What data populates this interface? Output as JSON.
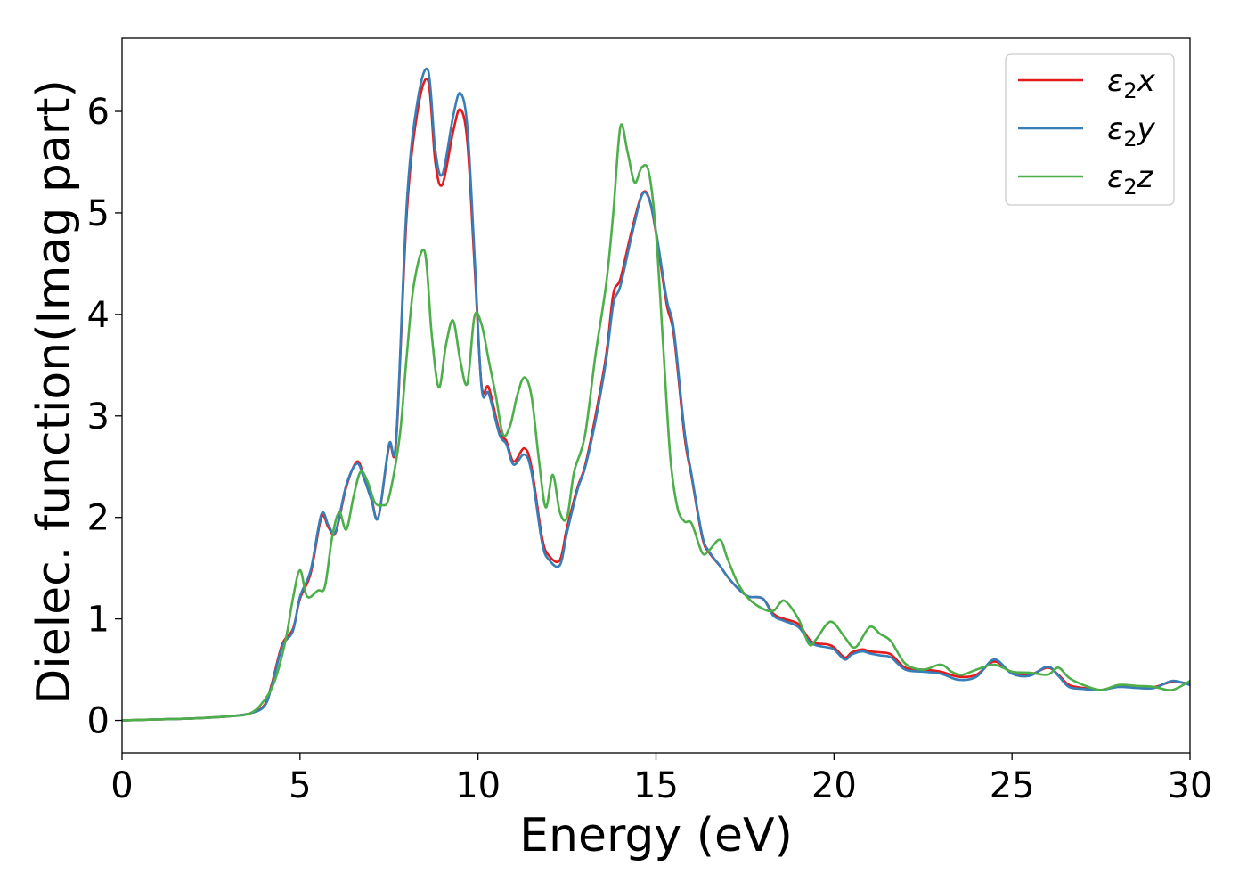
{
  "chart_data": {
    "type": "line",
    "xlabel": "Energy (eV)",
    "ylabel": "Dielec. function(Imag part)",
    "xlim": [
      0,
      30
    ],
    "ylim": [
      -0.32,
      6.72
    ],
    "xticks": [
      0,
      5,
      10,
      15,
      20,
      25,
      30
    ],
    "yticks": [
      0,
      1,
      2,
      3,
      4,
      5,
      6
    ],
    "grid": false,
    "legend_position": "top-right",
    "series": [
      {
        "name": "ε₂x",
        "legend_base": "ε",
        "legend_sub": "2",
        "legend_suffix": "x",
        "color": "#e41a1c",
        "x": [
          0,
          1,
          2,
          3,
          3.6,
          4,
          4.2,
          4.5,
          4.8,
          5.0,
          5.3,
          5.6,
          5.8,
          6.0,
          6.3,
          6.6,
          6.8,
          7.0,
          7.2,
          7.5,
          7.7,
          8.0,
          8.3,
          8.6,
          8.8,
          9.0,
          9.3,
          9.5,
          9.7,
          9.9,
          10.1,
          10.3,
          10.6,
          10.8,
          11.0,
          11.3,
          11.5,
          11.8,
          12.0,
          12.3,
          12.5,
          12.8,
          13.0,
          13.3,
          13.6,
          13.8,
          14.0,
          14.3,
          14.6,
          14.8,
          15.0,
          15.3,
          15.5,
          15.8,
          16.0,
          16.3,
          16.5,
          16.8,
          17.0,
          17.3,
          17.6,
          18.0,
          18.3,
          18.6,
          19.0,
          19.3,
          19.5,
          19.8,
          20.0,
          20.3,
          20.5,
          20.8,
          21.0,
          21.3,
          21.6,
          22.0,
          22.5,
          23.0,
          23.5,
          24.0,
          24.5,
          25.0,
          25.5,
          26.0,
          26.3,
          26.6,
          27.0,
          27.5,
          28.0,
          28.5,
          29.0,
          29.5,
          30.0
        ],
        "y": [
          0.0,
          0.01,
          0.02,
          0.04,
          0.07,
          0.15,
          0.35,
          0.75,
          0.9,
          1.2,
          1.45,
          2.0,
          1.9,
          1.85,
          2.3,
          2.55,
          2.4,
          2.2,
          2.0,
          2.7,
          2.75,
          5.0,
          6.0,
          6.3,
          5.5,
          5.28,
          5.8,
          6.02,
          5.7,
          4.5,
          3.3,
          3.28,
          2.85,
          2.75,
          2.55,
          2.68,
          2.5,
          1.8,
          1.62,
          1.58,
          1.9,
          2.3,
          2.5,
          3.0,
          3.6,
          4.2,
          4.35,
          4.8,
          5.18,
          5.15,
          4.8,
          4.1,
          3.8,
          2.8,
          2.4,
          1.8,
          1.65,
          1.52,
          1.42,
          1.3,
          1.22,
          1.2,
          1.05,
          1.0,
          0.95,
          0.8,
          0.76,
          0.75,
          0.72,
          0.62,
          0.67,
          0.7,
          0.68,
          0.67,
          0.65,
          0.52,
          0.5,
          0.48,
          0.43,
          0.45,
          0.58,
          0.47,
          0.45,
          0.52,
          0.45,
          0.35,
          0.32,
          0.3,
          0.34,
          0.33,
          0.33,
          0.38,
          0.36
        ]
      },
      {
        "name": "ε₂y",
        "legend_base": "ε",
        "legend_sub": "2",
        "legend_suffix": "y",
        "color": "#377eb8",
        "x": [
          0,
          1,
          2,
          3,
          3.6,
          4,
          4.2,
          4.5,
          4.8,
          5.0,
          5.3,
          5.6,
          5.8,
          6.0,
          6.3,
          6.6,
          6.8,
          7.0,
          7.2,
          7.5,
          7.7,
          8.0,
          8.3,
          8.6,
          8.8,
          9.0,
          9.3,
          9.5,
          9.7,
          9.9,
          10.1,
          10.3,
          10.6,
          10.8,
          11.0,
          11.3,
          11.5,
          11.8,
          12.0,
          12.3,
          12.5,
          12.8,
          13.0,
          13.3,
          13.6,
          13.8,
          14.0,
          14.3,
          14.6,
          14.8,
          15.0,
          15.3,
          15.5,
          15.8,
          16.0,
          16.3,
          16.5,
          16.8,
          17.0,
          17.3,
          17.6,
          18.0,
          18.3,
          18.6,
          19.0,
          19.3,
          19.5,
          19.8,
          20.0,
          20.3,
          20.5,
          20.8,
          21.0,
          21.3,
          21.6,
          22.0,
          22.5,
          23.0,
          23.5,
          24.0,
          24.5,
          25.0,
          25.5,
          26.0,
          26.3,
          26.6,
          27.0,
          27.5,
          28.0,
          28.5,
          29.0,
          29.5,
          30.0
        ],
        "y": [
          0.0,
          0.01,
          0.02,
          0.04,
          0.07,
          0.14,
          0.33,
          0.73,
          0.88,
          1.22,
          1.48,
          2.03,
          1.92,
          1.86,
          2.32,
          2.53,
          2.38,
          2.18,
          2.0,
          2.72,
          2.77,
          5.1,
          6.1,
          6.4,
          5.62,
          5.38,
          5.95,
          6.18,
          5.85,
          4.6,
          3.28,
          3.22,
          2.82,
          2.72,
          2.52,
          2.62,
          2.45,
          1.75,
          1.58,
          1.53,
          1.85,
          2.28,
          2.48,
          2.95,
          3.55,
          4.1,
          4.28,
          4.75,
          5.17,
          5.14,
          4.82,
          4.15,
          3.85,
          2.85,
          2.42,
          1.82,
          1.66,
          1.52,
          1.42,
          1.3,
          1.22,
          1.2,
          1.03,
          0.98,
          0.92,
          0.78,
          0.74,
          0.72,
          0.7,
          0.6,
          0.65,
          0.68,
          0.66,
          0.64,
          0.62,
          0.5,
          0.48,
          0.46,
          0.4,
          0.43,
          0.6,
          0.46,
          0.44,
          0.53,
          0.44,
          0.33,
          0.31,
          0.3,
          0.33,
          0.32,
          0.32,
          0.39,
          0.35
        ]
      },
      {
        "name": "ε₂z",
        "legend_base": "ε",
        "legend_sub": "2",
        "legend_suffix": "z",
        "color": "#4daf4a",
        "x": [
          0,
          1,
          2,
          3,
          3.6,
          4,
          4.3,
          4.6,
          4.8,
          5.0,
          5.2,
          5.5,
          5.7,
          5.9,
          6.1,
          6.3,
          6.5,
          6.7,
          6.9,
          7.1,
          7.3,
          7.5,
          7.8,
          8.0,
          8.2,
          8.5,
          8.7,
          8.9,
          9.1,
          9.3,
          9.5,
          9.7,
          9.9,
          10.1,
          10.3,
          10.5,
          10.7,
          10.9,
          11.1,
          11.3,
          11.5,
          11.7,
          11.9,
          12.1,
          12.3,
          12.5,
          12.7,
          13.0,
          13.3,
          13.6,
          13.8,
          14.0,
          14.2,
          14.4,
          14.6,
          14.8,
          15.0,
          15.2,
          15.4,
          15.6,
          15.8,
          16.0,
          16.3,
          16.5,
          16.8,
          17.0,
          17.3,
          17.6,
          18.0,
          18.3,
          18.6,
          19.0,
          19.3,
          19.5,
          19.8,
          20.0,
          20.3,
          20.6,
          21.0,
          21.3,
          21.6,
          22.0,
          22.5,
          23.0,
          23.3,
          23.6,
          24.0,
          24.5,
          25.0,
          25.5,
          26.0,
          26.3,
          26.6,
          27.0,
          27.5,
          28.0,
          28.5,
          29.0,
          29.5,
          30.0
        ],
        "y": [
          0.0,
          0.01,
          0.02,
          0.04,
          0.07,
          0.2,
          0.4,
          0.8,
          1.2,
          1.48,
          1.22,
          1.28,
          1.32,
          1.8,
          2.05,
          1.88,
          2.2,
          2.45,
          2.35,
          2.15,
          2.12,
          2.2,
          2.8,
          3.6,
          4.3,
          4.62,
          3.8,
          3.28,
          3.7,
          3.94,
          3.55,
          3.32,
          3.98,
          3.9,
          3.55,
          3.2,
          2.82,
          2.9,
          3.2,
          3.38,
          3.2,
          2.6,
          2.1,
          2.42,
          2.05,
          2.0,
          2.45,
          2.8,
          3.6,
          4.3,
          5.0,
          5.85,
          5.6,
          5.3,
          5.45,
          5.4,
          4.8,
          3.7,
          2.6,
          2.1,
          1.96,
          1.94,
          1.65,
          1.68,
          1.78,
          1.6,
          1.35,
          1.2,
          1.1,
          1.08,
          1.18,
          1.0,
          0.75,
          0.8,
          0.95,
          0.96,
          0.82,
          0.72,
          0.92,
          0.85,
          0.78,
          0.56,
          0.5,
          0.55,
          0.48,
          0.45,
          0.5,
          0.55,
          0.48,
          0.47,
          0.45,
          0.52,
          0.42,
          0.35,
          0.3,
          0.35,
          0.34,
          0.33,
          0.3,
          0.39
        ]
      }
    ]
  }
}
